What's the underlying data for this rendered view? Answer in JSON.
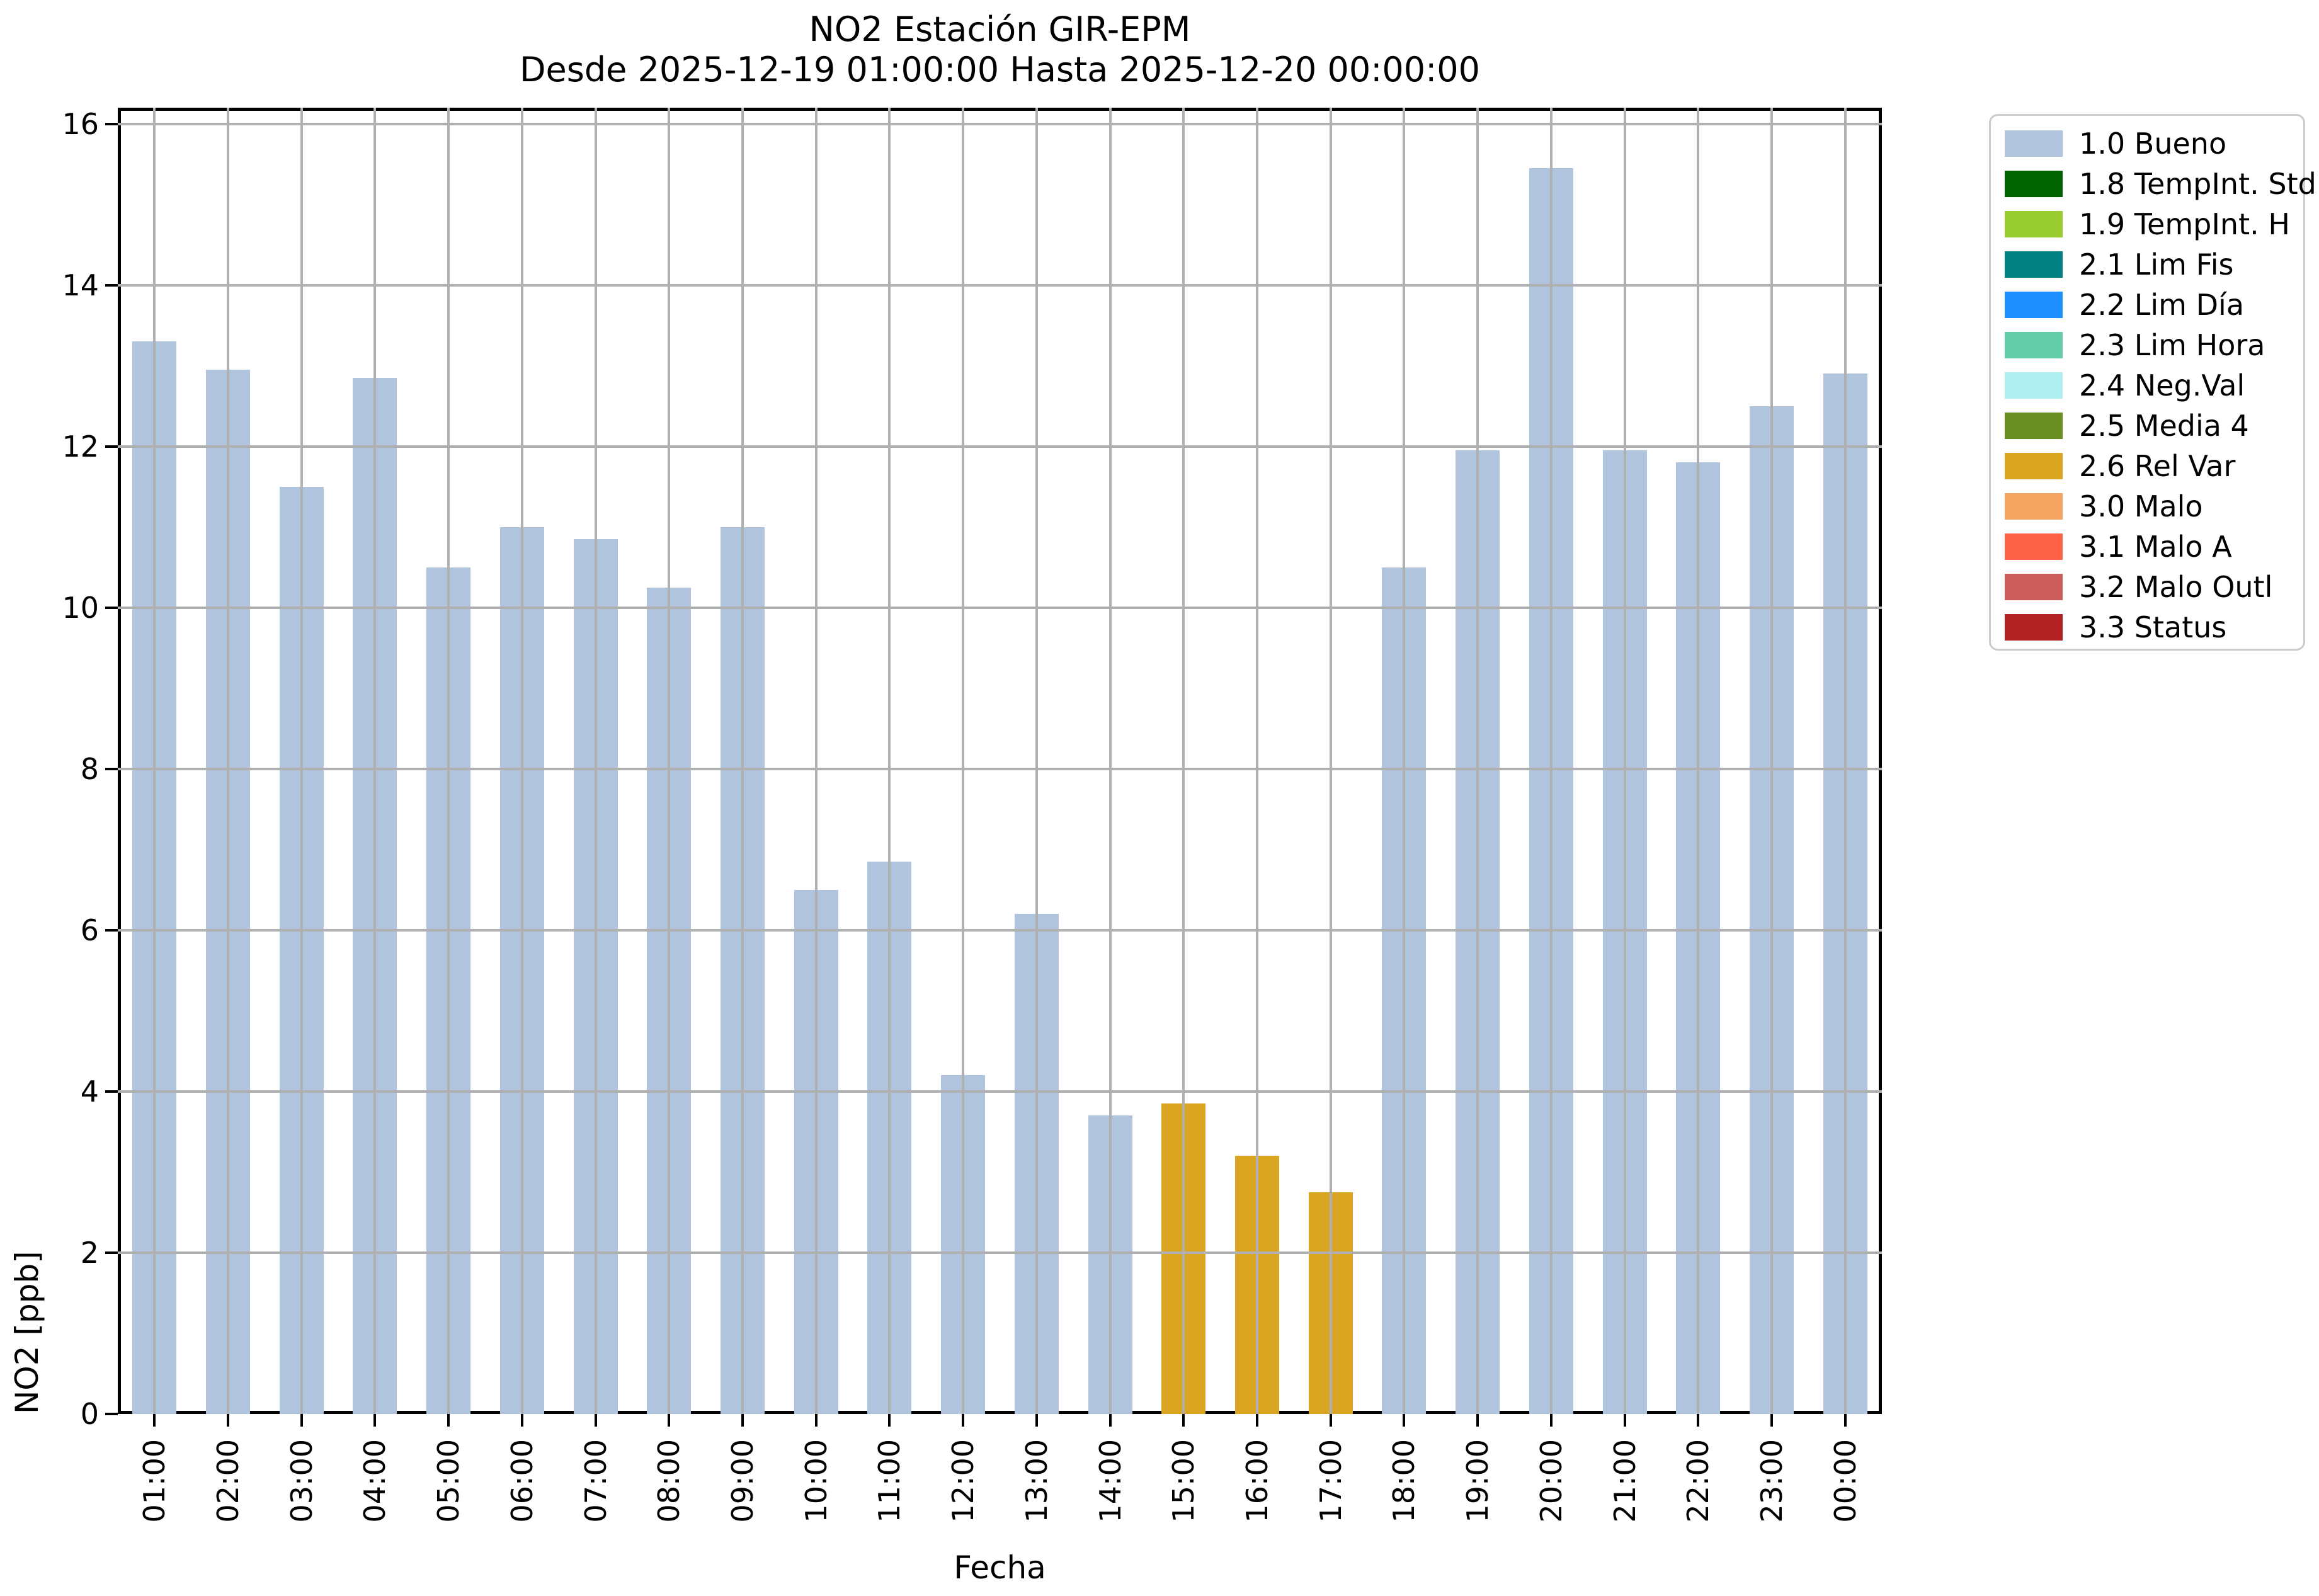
{
  "title": {
    "line1": "NO2 Estación GIR-EPM",
    "line2": "Desde 2025-12-19 01:00:00 Hasta 2025-12-20 00:00:00"
  },
  "axes": {
    "xlabel": "Fecha",
    "ylabel": "NO2 [ppb]",
    "y_ticks": [
      0,
      2,
      4,
      6,
      8,
      10,
      12,
      14,
      16
    ],
    "ylim": [
      0,
      16.2
    ],
    "grid": "on",
    "tick_label_rotation_x": 90
  },
  "chart_data": {
    "type": "bar",
    "title": "NO2 Estación GIR-EPM — Desde 2025-12-19 01:00:00 Hasta 2025-12-20 00:00:00",
    "xlabel": "Fecha",
    "ylabel": "NO2 [ppb]",
    "ylim": [
      0,
      16.2
    ],
    "categories": [
      "01:00",
      "02:00",
      "03:00",
      "04:00",
      "05:00",
      "06:00",
      "07:00",
      "08:00",
      "09:00",
      "10:00",
      "11:00",
      "12:00",
      "13:00",
      "14:00",
      "15:00",
      "16:00",
      "17:00",
      "18:00",
      "19:00",
      "20:00",
      "21:00",
      "22:00",
      "23:00",
      "00:00"
    ],
    "values": [
      13.3,
      12.95,
      11.5,
      12.85,
      10.5,
      11.0,
      10.85,
      10.25,
      11.0,
      6.5,
      6.85,
      4.2,
      6.2,
      3.7,
      3.85,
      3.2,
      2.75,
      10.5,
      11.95,
      15.45,
      11.95,
      11.8,
      12.5,
      12.9
    ],
    "statuses": [
      "1.0",
      "1.0",
      "1.0",
      "1.0",
      "1.0",
      "1.0",
      "1.0",
      "1.0",
      "1.0",
      "1.0",
      "1.0",
      "1.0",
      "1.0",
      "1.0",
      "2.6",
      "2.6",
      "2.6",
      "1.0",
      "1.0",
      "1.0",
      "1.0",
      "1.0",
      "1.0",
      "1.0"
    ],
    "colors": {
      "1.0": "#b0c4de",
      "1.8": "#006400",
      "1.9": "#9acd32",
      "2.1": "#008080",
      "2.2": "#1e90ff",
      "2.3": "#66cdaa",
      "2.4": "#afeeee",
      "2.5": "#6b8e23",
      "2.6": "#daa520",
      "3.0": "#f4a460",
      "3.1": "#ff6347",
      "3.2": "#cd5c5c",
      "3.3": "#b22222"
    },
    "legend_position": "outside-right"
  },
  "legend": {
    "items": [
      {
        "label": "1.0 Bueno",
        "color": "#b0c4de"
      },
      {
        "label": "1.8 TempInt. Std",
        "color": "#006400"
      },
      {
        "label": "1.9 TempInt. H",
        "color": "#9acd32"
      },
      {
        "label": "2.1 Lim Fis",
        "color": "#008080"
      },
      {
        "label": "2.2 Lim Día",
        "color": "#1e90ff"
      },
      {
        "label": "2.3 Lim Hora",
        "color": "#66cdaa"
      },
      {
        "label": "2.4 Neg.Val",
        "color": "#afeeee"
      },
      {
        "label": "2.5 Media 4",
        "color": "#6b8e23"
      },
      {
        "label": "2.6 Rel Var",
        "color": "#daa520"
      },
      {
        "label": "3.0 Malo",
        "color": "#f4a460"
      },
      {
        "label": "3.1 Malo A",
        "color": "#ff6347"
      },
      {
        "label": "3.2 Malo Outl",
        "color": "#cd5c5c"
      },
      {
        "label": "3.3 Status",
        "color": "#b22222"
      }
    ]
  }
}
